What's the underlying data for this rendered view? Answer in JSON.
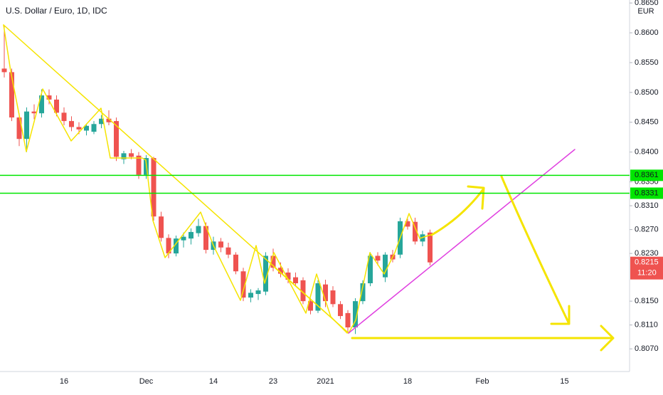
{
  "chart_data": {
    "type": "candlestick",
    "title": "U.S. Dollar / Euro, 1D, IDC",
    "currency": "EUR",
    "countdown": "11:20",
    "up_color": "#26a69a",
    "down_color": "#ef5350",
    "grid": false,
    "ylim": [
      0.8032,
      0.8655
    ],
    "yticks": [
      {
        "value": 0.865,
        "label": "0.8650"
      },
      {
        "value": 0.86,
        "label": "0.8600"
      },
      {
        "value": 0.855,
        "label": "0.8550"
      },
      {
        "value": 0.85,
        "label": "0.8500"
      },
      {
        "value": 0.845,
        "label": "0.8450"
      },
      {
        "value": 0.84,
        "label": "0.8400"
      },
      {
        "value": 0.835,
        "label": "0.8350"
      },
      {
        "value": 0.831,
        "label": "0.8310"
      },
      {
        "value": 0.827,
        "label": "0.8270"
      },
      {
        "value": 0.823,
        "label": "0.8230"
      },
      {
        "value": 0.815,
        "label": "0.8150"
      },
      {
        "value": 0.811,
        "label": "0.8110"
      },
      {
        "value": 0.807,
        "label": "0.8070"
      }
    ],
    "hlines": [
      {
        "value": 0.8361,
        "color": "#00e600"
      },
      {
        "value": 0.8331,
        "color": "#00e600"
      }
    ],
    "categories": [
      null,
      null,
      null,
      null,
      null,
      null,
      null,
      null,
      "16",
      null,
      null,
      null,
      null,
      null,
      null,
      null,
      null,
      null,
      null,
      "Dec",
      null,
      null,
      null,
      null,
      null,
      null,
      null,
      null,
      "14",
      null,
      null,
      null,
      null,
      null,
      null,
      null,
      "23",
      null,
      null,
      null,
      null,
      null,
      null,
      "2021",
      null,
      null,
      null,
      null,
      null,
      null,
      null,
      null,
      null,
      null,
      "18",
      null,
      null,
      null,
      null,
      null,
      null,
      null,
      null,
      null,
      "Feb",
      null,
      null,
      null,
      null,
      null,
      null,
      null,
      null,
      null,
      null,
      "15",
      null,
      null,
      null,
      null,
      null,
      null,
      null,
      null
    ],
    "open": [
      0.854,
      0.8534,
      0.8458,
      0.8422,
      0.8468,
      0.8465,
      0.8495,
      0.8488,
      0.8466,
      0.8452,
      0.8442,
      0.8436,
      0.8434,
      0.8447,
      0.8456,
      0.8452,
      0.8388,
      0.8398,
      0.8394,
      0.8362,
      0.839,
      0.8292,
      0.8256,
      0.823,
      0.8252,
      0.8255,
      0.8264,
      0.8276,
      0.8236,
      0.825,
      0.824,
      0.8228,
      0.82,
      0.8156,
      0.8162,
      0.8166,
      0.8226,
      0.8206,
      0.8198,
      0.819,
      0.8185,
      0.815,
      0.8134,
      0.8178,
      0.8168,
      0.8145,
      0.813,
      0.8106,
      0.815,
      0.818,
      0.8226,
      0.819,
      0.8228,
      0.8228,
      0.8284,
      0.8283,
      0.825,
      0.8265,
      null,
      null,
      null,
      null,
      null,
      null,
      null,
      null,
      null,
      null,
      null,
      null,
      null,
      null,
      null,
      null,
      null,
      null,
      null,
      null,
      null,
      null,
      null,
      null,
      null,
      null
    ],
    "high": [
      0.8612,
      0.854,
      0.8465,
      0.8475,
      0.848,
      0.8505,
      0.8505,
      0.8495,
      0.8475,
      0.846,
      0.845,
      0.8448,
      0.8452,
      0.8462,
      0.847,
      0.8458,
      0.8402,
      0.8405,
      0.84,
      0.8395,
      0.8392,
      0.83,
      0.8262,
      0.826,
      0.8265,
      0.8272,
      0.8288,
      0.8282,
      0.8258,
      0.8256,
      0.8248,
      0.8232,
      0.8206,
      0.817,
      0.8172,
      0.8232,
      0.8238,
      0.8215,
      0.8205,
      0.8198,
      0.819,
      0.8155,
      0.8185,
      0.8186,
      0.8175,
      0.815,
      0.8135,
      0.8155,
      0.8185,
      0.8232,
      0.8232,
      0.8232,
      0.8236,
      0.829,
      0.8288,
      0.829,
      0.8268,
      0.827,
      null,
      null,
      null,
      null,
      null,
      null,
      null,
      null,
      null,
      null,
      null,
      null,
      null,
      null,
      null,
      null,
      null,
      null,
      null,
      null,
      null,
      null,
      null,
      null,
      null,
      null
    ],
    "low": [
      0.8525,
      0.8452,
      0.841,
      0.84,
      0.8455,
      0.8458,
      0.848,
      0.846,
      0.8445,
      0.8435,
      0.843,
      0.8428,
      0.843,
      0.844,
      0.8445,
      0.8385,
      0.838,
      0.8388,
      0.8355,
      0.8355,
      0.8285,
      0.825,
      0.8222,
      0.8225,
      0.824,
      0.8245,
      0.8258,
      0.823,
      0.8228,
      0.8232,
      0.8222,
      0.8195,
      0.815,
      0.8148,
      0.8152,
      0.816,
      0.82,
      0.819,
      0.818,
      0.8175,
      0.8145,
      0.8128,
      0.813,
      0.814,
      0.814,
      0.812,
      0.8098,
      0.8095,
      0.8145,
      0.8175,
      0.821,
      0.8182,
      0.8215,
      0.8222,
      0.827,
      0.8245,
      0.8242,
      0.821,
      null,
      null,
      null,
      null,
      null,
      null,
      null,
      null,
      null,
      null,
      null,
      null,
      null,
      null,
      null,
      null,
      null,
      null,
      null,
      null,
      null,
      null,
      null,
      null,
      null,
      null
    ],
    "close": [
      0.8534,
      0.8458,
      0.8422,
      0.8468,
      0.8465,
      0.8495,
      0.8488,
      0.8466,
      0.8452,
      0.8442,
      0.8438,
      0.8444,
      0.8447,
      0.8456,
      0.845,
      0.8392,
      0.8398,
      0.8392,
      0.8362,
      0.839,
      0.8292,
      0.8256,
      0.823,
      0.8255,
      0.8258,
      0.8266,
      0.8276,
      0.8236,
      0.825,
      0.824,
      0.8228,
      0.82,
      0.8156,
      0.8164,
      0.8168,
      0.8226,
      0.8206,
      0.8196,
      0.8186,
      0.818,
      0.815,
      0.8134,
      0.818,
      0.815,
      0.8145,
      0.8125,
      0.8106,
      0.815,
      0.818,
      0.8226,
      0.8218,
      0.8228,
      0.822,
      0.8284,
      0.8275,
      0.825,
      0.8262,
      0.8215,
      null,
      null,
      null,
      null,
      null,
      null,
      null,
      null,
      null,
      null,
      null,
      null,
      null,
      null,
      null,
      null,
      null,
      null,
      null,
      null,
      null,
      null,
      null,
      null,
      null,
      null
    ]
  }
}
